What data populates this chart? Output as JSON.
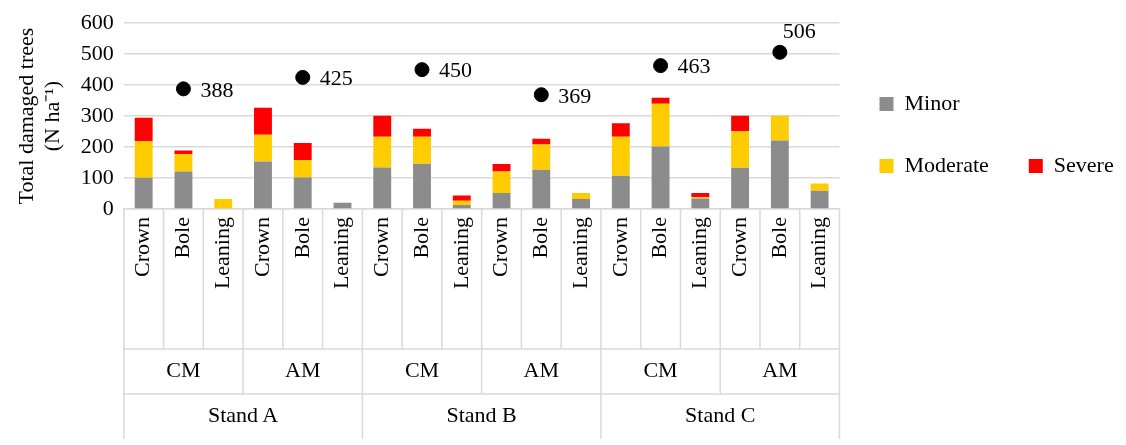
{
  "chart_data": {
    "type": "bar",
    "stacked": true,
    "ylabel": "Total damaged trees (N ha⁻¹)",
    "categories": [
      "Crown",
      "Bole",
      "Leaning",
      "Crown",
      "Bole",
      "Leaning",
      "Crown",
      "Bole",
      "Leaning",
      "Crown",
      "Bole",
      "Leaning",
      "Crown",
      "Bole",
      "Leaning",
      "Crown",
      "Bole",
      "Leaning"
    ],
    "series": [
      {
        "name": "Minor",
        "color": "#8c8c8c",
        "values": [
          101,
          121,
          0,
          153,
          102,
          20,
          134,
          146,
          13,
          52,
          127,
          32,
          107,
          202,
          34,
          133,
          221,
          59
        ]
      },
      {
        "name": "Moderate",
        "color": "#ffcc00",
        "values": [
          118,
          56,
          32,
          87,
          56,
          0,
          99,
          87,
          14,
          69,
          81,
          20,
          126,
          138,
          5,
          119,
          80,
          23
        ]
      },
      {
        "name": "Severe",
        "color": "#ff0000",
        "values": [
          76,
          12,
          0,
          87,
          55,
          0,
          68,
          26,
          17,
          24,
          19,
          0,
          44,
          19,
          13,
          49,
          0,
          0
        ]
      },
      {
        "type": "scatter",
        "color": "#000000",
        "values": [
          null,
          388,
          null,
          null,
          425,
          null,
          null,
          450,
          null,
          null,
          369,
          null,
          null,
          463,
          null,
          null,
          506,
          null
        ],
        "value_labels": [
          null,
          "388",
          null,
          null,
          "425",
          null,
          null,
          "450",
          null,
          null,
          "369",
          null,
          null,
          "463",
          null,
          null,
          "506",
          null
        ]
      }
    ],
    "ylim": [
      0,
      600
    ],
    "yticks": [
      0,
      100,
      200,
      300,
      400,
      500,
      600
    ],
    "grid": "y",
    "legend": "right",
    "marker": "circle",
    "annotations": [
      "CM",
      "AM",
      "CM",
      "AM",
      "CM",
      "AM",
      "Stand A",
      "Stand B",
      "Stand C"
    ]
  }
}
